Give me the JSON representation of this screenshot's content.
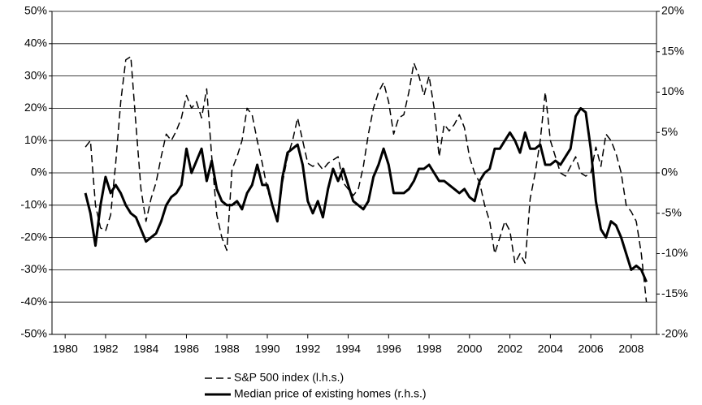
{
  "chart_data": {
    "type": "line",
    "x": [
      1981,
      1981.25,
      1981.5,
      1981.75,
      1982,
      1982.25,
      1982.5,
      1982.75,
      1983,
      1983.25,
      1983.5,
      1983.75,
      1984,
      1984.25,
      1984.5,
      1984.75,
      1985,
      1985.25,
      1985.5,
      1985.75,
      1986,
      1986.25,
      1986.5,
      1986.75,
      1987,
      1987.25,
      1987.5,
      1987.75,
      1988,
      1988.25,
      1988.5,
      1988.75,
      1989,
      1989.25,
      1989.5,
      1989.75,
      1990,
      1990.25,
      1990.5,
      1990.75,
      1991,
      1991.25,
      1991.5,
      1991.75,
      1992,
      1992.25,
      1992.5,
      1992.75,
      1993,
      1993.25,
      1993.5,
      1993.75,
      1994,
      1994.25,
      1994.5,
      1994.75,
      1995,
      1995.25,
      1995.5,
      1995.75,
      1996,
      1996.25,
      1996.5,
      1996.75,
      1997,
      1997.25,
      1997.5,
      1997.75,
      1998,
      1998.25,
      1998.5,
      1998.75,
      1999,
      1999.25,
      1999.5,
      1999.75,
      2000,
      2000.25,
      2000.5,
      2000.75,
      2001,
      2001.25,
      2001.5,
      2001.75,
      2002,
      2002.25,
      2002.5,
      2002.75,
      2003,
      2003.25,
      2003.5,
      2003.75,
      2004,
      2004.25,
      2004.5,
      2004.75,
      2005,
      2005.25,
      2005.5,
      2005.75,
      2006,
      2006.25,
      2006.5,
      2006.75,
      2007,
      2007.25,
      2007.5,
      2007.75,
      2008,
      2008.25,
      2008.5,
      2008.75
    ],
    "series": [
      {
        "name": "S&P 500 index (l.h.s.)",
        "color": "#000000",
        "dash": true,
        "axis": "y",
        "values": [
          8,
          10,
          -10,
          -17,
          -18,
          -13,
          3,
          22,
          35,
          36,
          15,
          -5,
          -15,
          -8,
          -3,
          5,
          12,
          10,
          13,
          17,
          24,
          20,
          22,
          17,
          26,
          5,
          -13,
          -20,
          -24,
          1,
          5,
          10,
          20,
          18,
          10,
          3,
          -5,
          -10,
          -15,
          -3,
          5,
          10,
          17,
          10,
          3,
          2,
          3,
          1,
          3,
          4,
          5,
          -3,
          -5,
          -7,
          -5,
          2,
          12,
          20,
          25,
          28,
          22,
          12,
          17,
          18,
          25,
          34,
          30,
          24,
          30,
          20,
          5,
          15,
          13,
          15,
          18,
          14,
          5,
          0,
          -3,
          -10,
          -15,
          -25,
          -20,
          -15,
          -18,
          -28,
          -25,
          -28,
          -8,
          0,
          10,
          25,
          10,
          5,
          0,
          -1,
          2,
          5,
          0,
          -1,
          0,
          8,
          2,
          12,
          10,
          6,
          0,
          -10,
          -12,
          -15,
          -25,
          -40
        ]
      },
      {
        "name": "Median price of existing homes (r.h.s.)",
        "color": "#000000",
        "dash": false,
        "axis": "y2",
        "values": [
          -2.5,
          -5,
          -9,
          -4,
          -0.5,
          -2.5,
          -1.5,
          -2.5,
          -4,
          -5,
          -5.5,
          -7,
          -8.5,
          -8,
          -7.5,
          -6,
          -4,
          -3,
          -2.5,
          -1.5,
          3,
          0,
          1.5,
          3,
          -1,
          1.5,
          -2,
          -3.5,
          -4,
          -4,
          -3.5,
          -4.5,
          -2.5,
          -1.5,
          1,
          -1.5,
          -1.5,
          -4,
          -6,
          -0.5,
          2.5,
          3,
          3.5,
          1,
          -3.5,
          -5,
          -3.5,
          -5.5,
          -2,
          0.5,
          -1,
          0.5,
          -1.5,
          -3.5,
          -4,
          -4.5,
          -3.5,
          -0.5,
          1,
          3,
          1,
          -2.5,
          -2.5,
          -2.5,
          -2,
          -1,
          0.5,
          0.5,
          1,
          0,
          -1,
          -1,
          -1.5,
          -2,
          -2.5,
          -2,
          -3,
          -3.5,
          -1,
          0,
          0.5,
          3,
          3,
          4,
          5,
          4,
          2.5,
          5,
          3,
          3,
          3.5,
          1,
          1,
          1.5,
          1,
          2,
          3,
          7,
          8,
          7.5,
          3,
          -3.5,
          -7,
          -8,
          -6,
          -6.5,
          -8,
          -10,
          -12,
          -11.5,
          -12,
          -13.5
        ]
      }
    ],
    "xlim": [
      1979.35,
      2009.25
    ],
    "xticks": [
      1980,
      1982,
      1984,
      1986,
      1988,
      1990,
      1992,
      1994,
      1996,
      1998,
      2000,
      2002,
      2004,
      2006,
      2008
    ],
    "ylim": [
      -50,
      50
    ],
    "yticks": [
      {
        "value": -50,
        "label": "-50%"
      },
      {
        "value": -40,
        "label": "-40%"
      },
      {
        "value": -30,
        "label": "-30%"
      },
      {
        "value": -20,
        "label": "-20%"
      },
      {
        "value": -10,
        "label": "-10%"
      },
      {
        "value": 0,
        "label": "0%"
      },
      {
        "value": 10,
        "label": "10%"
      },
      {
        "value": 20,
        "label": "20%"
      },
      {
        "value": 30,
        "label": "30%"
      },
      {
        "value": 40,
        "label": "40%"
      },
      {
        "value": 50,
        "label": "50%"
      }
    ],
    "y2lim": [
      -20,
      20
    ],
    "y2ticks": [
      {
        "value": -20,
        "label": "-20%"
      },
      {
        "value": -15,
        "label": "-15%"
      },
      {
        "value": -10,
        "label": "-10%"
      },
      {
        "value": -5,
        "label": "-5%"
      },
      {
        "value": 0,
        "label": "0%"
      },
      {
        "value": 5,
        "label": "5%"
      },
      {
        "value": 10,
        "label": "10%"
      },
      {
        "value": 15,
        "label": "15%"
      },
      {
        "value": 20,
        "label": "20%"
      }
    ],
    "grid": true
  }
}
